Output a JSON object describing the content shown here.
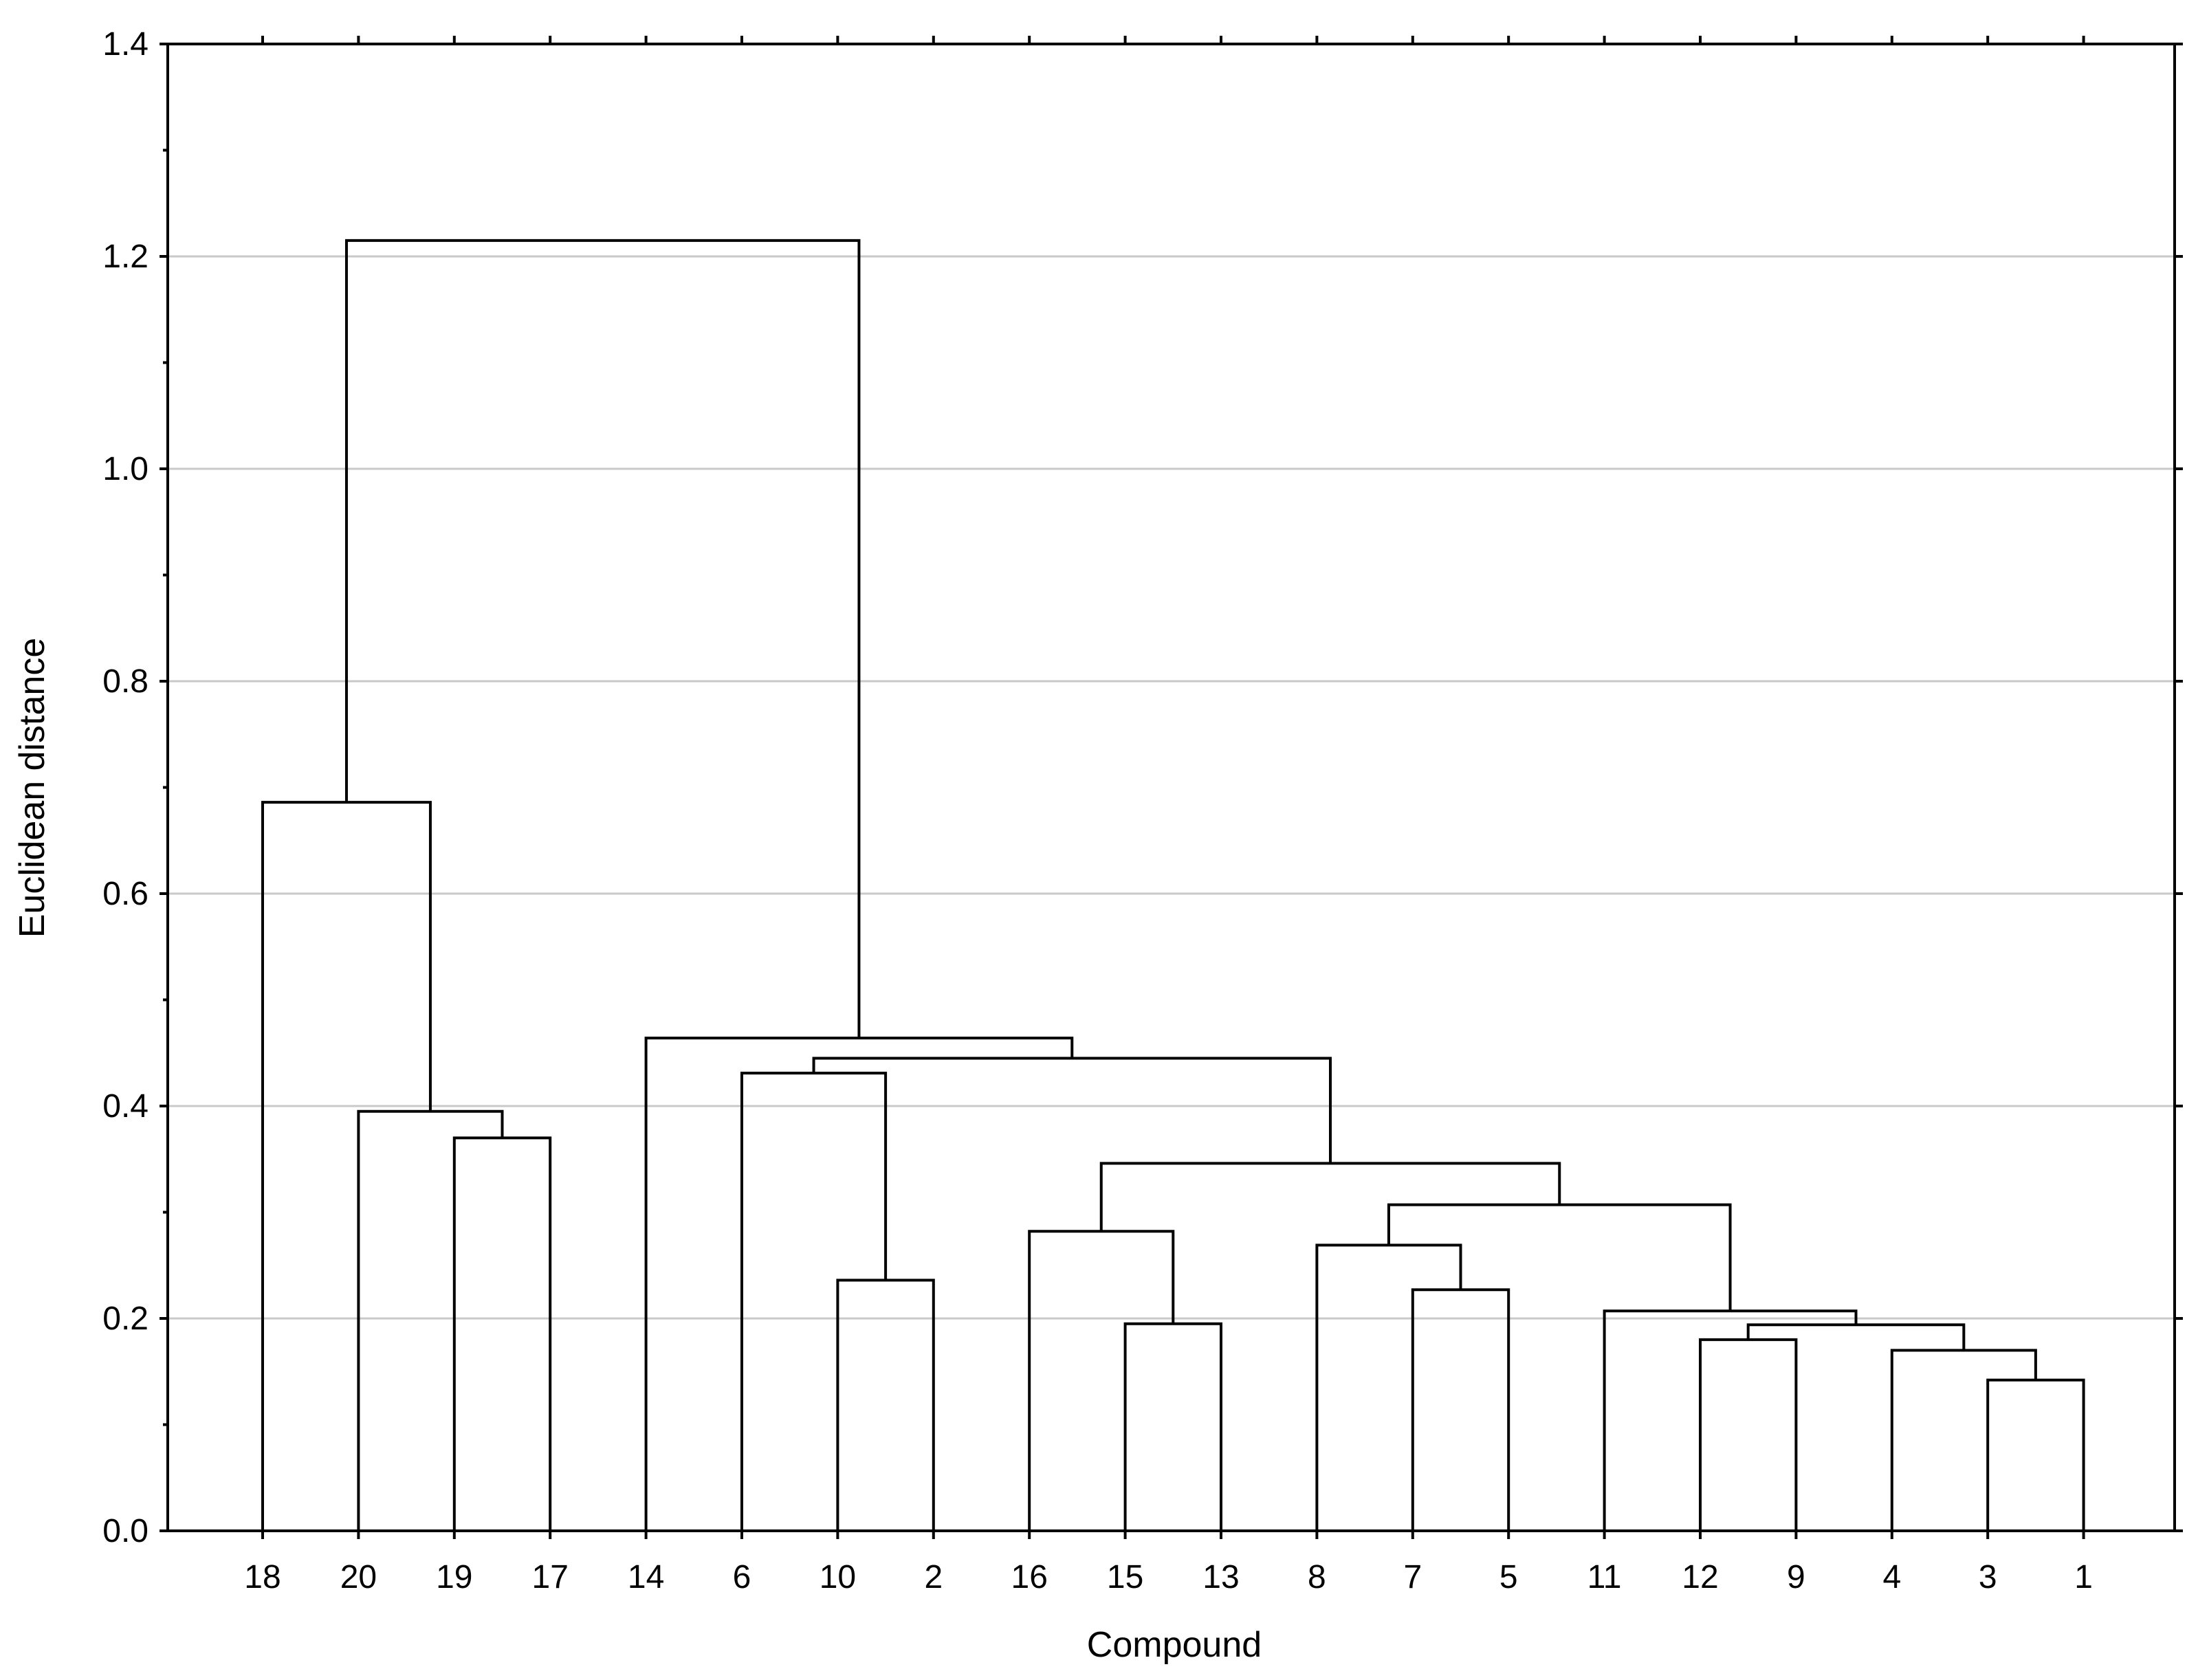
{
  "chart_data": {
    "type": "dendrogram",
    "xlabel": "Compound",
    "ylabel": "Euclidean distance",
    "ylim": [
      0,
      1.4
    ],
    "y_ticks": [
      "0.0",
      "0.2",
      "0.4",
      "0.6",
      "0.8",
      "1.0",
      "1.2",
      "1.4"
    ],
    "grid": true,
    "leaves": [
      "18",
      "20",
      "19",
      "17",
      "14",
      "6",
      "10",
      "2",
      "16",
      "15",
      "13",
      "8",
      "7",
      "5",
      "11",
      "12",
      "9",
      "4",
      "3",
      "1"
    ],
    "merges": [
      {
        "left": "3",
        "right": "1",
        "height": 0.142
      },
      {
        "left": "4",
        "right": "3+1",
        "height": 0.17
      },
      {
        "left": "12",
        "right": "9",
        "height": 0.18
      },
      {
        "left": "12+9",
        "right": "4+3+1",
        "height": 0.194
      },
      {
        "left": "15",
        "right": "13",
        "height": 0.195
      },
      {
        "left": "11",
        "right": "12+9+4+3+1",
        "height": 0.207
      },
      {
        "left": "7",
        "right": "5",
        "height": 0.227
      },
      {
        "left": "10",
        "right": "2",
        "height": 0.236
      },
      {
        "left": "8",
        "right": "7+5",
        "height": 0.269
      },
      {
        "left": "16",
        "right": "15+13",
        "height": 0.282
      },
      {
        "left": "8+7+5",
        "right": "11+12+9+4+3+1",
        "height": 0.307
      },
      {
        "left": "16+15+13",
        "right": "8+7+5+11+12+9+4+3+1",
        "height": 0.346
      },
      {
        "left": "19",
        "right": "17",
        "height": 0.37
      },
      {
        "left": "20",
        "right": "19+17",
        "height": 0.395
      },
      {
        "left": "6",
        "right": "10+2",
        "height": 0.431
      },
      {
        "left": "6+10+2",
        "right": "16+15+13+8+7+5+11+12+9+4+3+1",
        "height": 0.445
      },
      {
        "left": "14",
        "right": "6+10+2+16+15+13+8+7+5+11+12+9+4+3+1",
        "height": 0.464
      },
      {
        "left": "18",
        "right": "20+19+17",
        "height": 0.686
      },
      {
        "left": "18+20+19+17",
        "right": "14+6+10+2+16+15+13+8+7+5+11+12+9+4+3+1",
        "height": 1.215
      }
    ]
  }
}
